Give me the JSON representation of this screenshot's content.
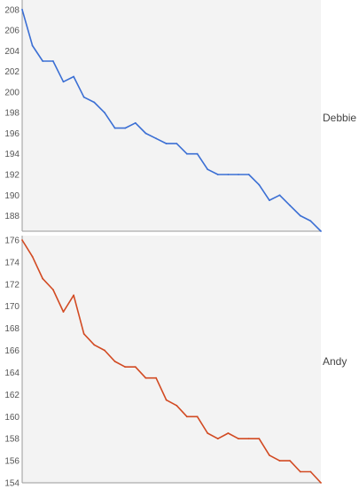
{
  "chart_data": [
    {
      "type": "line",
      "series": [
        {
          "name": "Debbie",
          "color": "#3b6fd4",
          "values": [
            208,
            204.5,
            203,
            203,
            201,
            201.5,
            199.5,
            199,
            198,
            196.5,
            196.5,
            197,
            196,
            195.5,
            195,
            195,
            194,
            194,
            192.5,
            192,
            192,
            192,
            192,
            191,
            189.5,
            190,
            189,
            188,
            187.5,
            186.5
          ]
        }
      ],
      "ylim": [
        186.5,
        208.5
      ],
      "yticks": [
        "188",
        "190",
        "192",
        "194",
        "196",
        "198",
        "200",
        "202",
        "204",
        "206",
        "208"
      ],
      "grid": false
    },
    {
      "type": "line",
      "series": [
        {
          "name": "Andy",
          "color": "#d24a22",
          "values": [
            176,
            174.5,
            172.5,
            171.5,
            169.5,
            171,
            167.5,
            166.5,
            166,
            165,
            164.5,
            164.5,
            163.5,
            163.5,
            161.5,
            161,
            160,
            160,
            158.5,
            158,
            158.5,
            158,
            158,
            158,
            156.5,
            156,
            156,
            155,
            155,
            154
          ]
        }
      ],
      "ylim": [
        154,
        176
      ],
      "yticks": [
        "154",
        "156",
        "158",
        "160",
        "162",
        "164",
        "166",
        "168",
        "170",
        "172",
        "174",
        "176"
      ],
      "grid": false
    }
  ]
}
